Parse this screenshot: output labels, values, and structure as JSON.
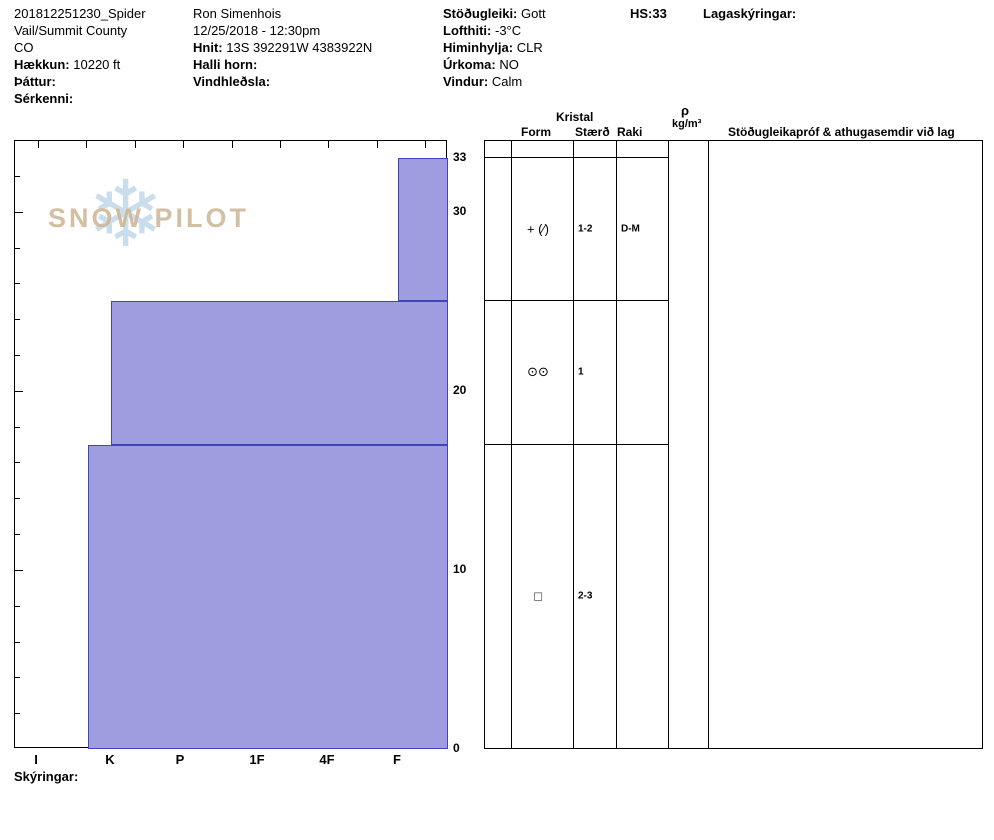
{
  "header": {
    "col1": {
      "pit_id": "201812251230_Spider",
      "location": "Vail/Summit County",
      "state": "CO",
      "elevation_label": "Hækkun:",
      "elevation_value": "10220 ft",
      "aspect_label": "Þáttur:",
      "aspect_value": "",
      "features_label": "Sérkenni:",
      "features_value": ""
    },
    "col2": {
      "observer": "Ron Simenhois",
      "datetime": "12/25/2018 - 12:30pm",
      "coords_label": "Hnit:",
      "coords_value": "13S 392291W 4383922N",
      "slope_label": "Halli horn:",
      "slope_value": "",
      "windloading_label": "Vindhleðsla:",
      "windloading_value": ""
    },
    "col3": {
      "stability_label": "Stöðugleiki:",
      "stability_value": "Gott",
      "airtemp_label": "Lofthiti:",
      "airtemp_value": "-3°C",
      "sky_label": "Himinhylja:",
      "sky_value": "CLR",
      "precip_label": "Úrkoma:",
      "precip_value": "NO",
      "wind_label": "Vindur:",
      "wind_value": "Calm"
    },
    "hs_label": "HS:",
    "hs_value": "33",
    "layer_notes_label": "Lagaskýringar:"
  },
  "watermark": {
    "snowflake": "❄",
    "text": "SNOW PILOT"
  },
  "chart_data": {
    "type": "bar",
    "title": "Snow pit hardness profile",
    "orientation": "horizontal-bars-depth-vs-hardness",
    "depth_axis": {
      "unit": "cm",
      "min": 0,
      "max": 33,
      "tick_labels": [
        0,
        10,
        20,
        30,
        33
      ]
    },
    "hardness_axis": {
      "labels": [
        "I",
        "K",
        "P",
        "1F",
        "4F",
        "F"
      ],
      "note": "hardness increases to the left"
    },
    "layers": [
      {
        "top_cm": 33,
        "bottom_cm": 25,
        "hardness": "F",
        "form": "+ (∕)",
        "size_mm": "1-2",
        "moisture": "D-M"
      },
      {
        "top_cm": 25,
        "bottom_cm": 17,
        "hardness": "K",
        "form": "⊙⊙",
        "size_mm": "1",
        "moisture": ""
      },
      {
        "top_cm": 17,
        "bottom_cm": 0,
        "hardness": "K+",
        "form": "□",
        "size_mm": "2-3",
        "moisture": ""
      }
    ],
    "bar_fill": "#9d9ddf",
    "bar_border": "#4343bd"
  },
  "table": {
    "kristal_header": "Kristal",
    "form_header": "Form",
    "size_header": "Stærð",
    "moisture_header": "Raki",
    "density_symbol": "ρ",
    "density_unit": "kg/m³",
    "comments_header": "Stöðugleikapróf & athugasemdir við lag"
  },
  "footer": {
    "notes_label": "Skýringar:"
  }
}
